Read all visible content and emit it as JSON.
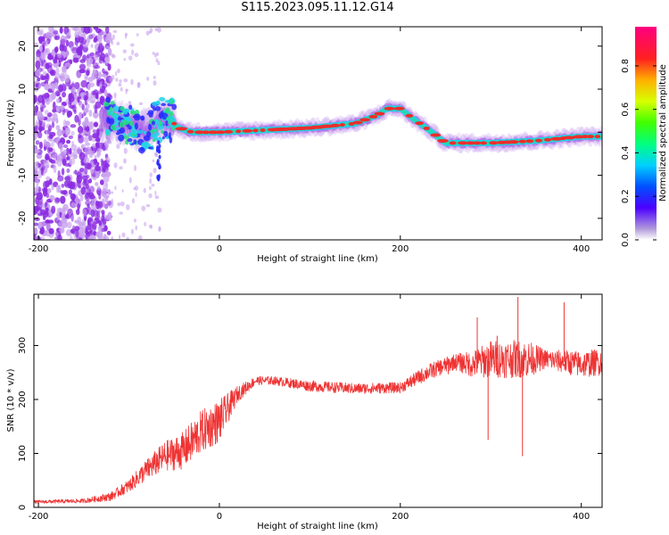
{
  "title": "S115.2023.095.11.12.G14",
  "colors": {
    "scatter_purple": "#8a2be2",
    "light_purple": "#c9a2ee",
    "ridge_green": "#26e07a",
    "ridge_cyan": "#22d3e6",
    "ridge_red": "#ee2c2c",
    "snr_line": "#ee3333"
  },
  "chart_data": [
    {
      "type": "heatmap",
      "xlabel": "Height of straight line (km)",
      "ylabel": "Frequency (Hz)",
      "xlim": [
        -205,
        423
      ],
      "ylim": [
        -25,
        24.5
      ],
      "xticks": [
        -200,
        0,
        200,
        400
      ],
      "yticks": [
        -20,
        -10,
        0,
        10,
        20
      ],
      "colorbar": {
        "label": "Normalized spectral amplitude",
        "ticks": [
          "0.0",
          "0.2",
          "0.4",
          "0.6",
          "0.8"
        ],
        "tick_values": [
          0,
          0.2,
          0.4,
          0.6,
          0.8
        ],
        "range": [
          0,
          0.98
        ]
      },
      "ridge": {
        "x": [
          -200,
          -120,
          -100,
          -80,
          -65,
          -55,
          -45,
          -30,
          0,
          50,
          100,
          150,
          175,
          185,
          200,
          215,
          235,
          250,
          300,
          350,
          400,
          423
        ],
        "frequency": [
          2,
          3,
          2,
          0,
          3,
          3,
          1,
          0,
          0,
          0.5,
          1,
          2,
          4,
          5.5,
          5.5,
          3,
          0,
          -2.5,
          -2.5,
          -2,
          -1,
          -1
        ]
      },
      "noise_region": {
        "x": [
          -205,
          -120
        ],
        "frequency": [
          -25,
          24.5
        ]
      }
    },
    {
      "type": "line",
      "xlabel": "Height of straight line (km)",
      "ylabel": "SNR (10 * v/v)",
      "xlim": [
        -205,
        423
      ],
      "ylim": [
        0,
        395
      ],
      "xticks": [
        -200,
        0,
        200,
        400
      ],
      "yticks": [
        0,
        100,
        200,
        300
      ],
      "envelope": {
        "x": [
          -205,
          -150,
          -120,
          -100,
          -80,
          -60,
          -40,
          -20,
          0,
          20,
          40,
          60,
          100,
          150,
          200,
          230,
          260,
          280,
          300,
          320,
          340,
          360,
          400,
          423
        ],
        "y": [
          10,
          12,
          20,
          40,
          70,
          95,
          105,
          140,
          160,
          210,
          235,
          235,
          225,
          220,
          222,
          250,
          270,
          265,
          275,
          275,
          275,
          275,
          265,
          270
        ],
        "noise_amplitude": [
          3,
          4,
          8,
          12,
          20,
          28,
          35,
          40,
          40,
          15,
          8,
          8,
          10,
          10,
          10,
          15,
          15,
          25,
          35,
          35,
          35,
          18,
          25,
          25
        ]
      },
      "spikes": [
        {
          "x": 285,
          "y": 352
        },
        {
          "x": 297,
          "y": 125
        },
        {
          "x": 330,
          "y": 390
        },
        {
          "x": 335,
          "y": 95
        },
        {
          "x": 381,
          "y": 380
        },
        {
          "x": 307,
          "y": 318
        },
        {
          "x": 253,
          "y": 247
        },
        {
          "x": 268,
          "y": 275
        }
      ]
    }
  ]
}
